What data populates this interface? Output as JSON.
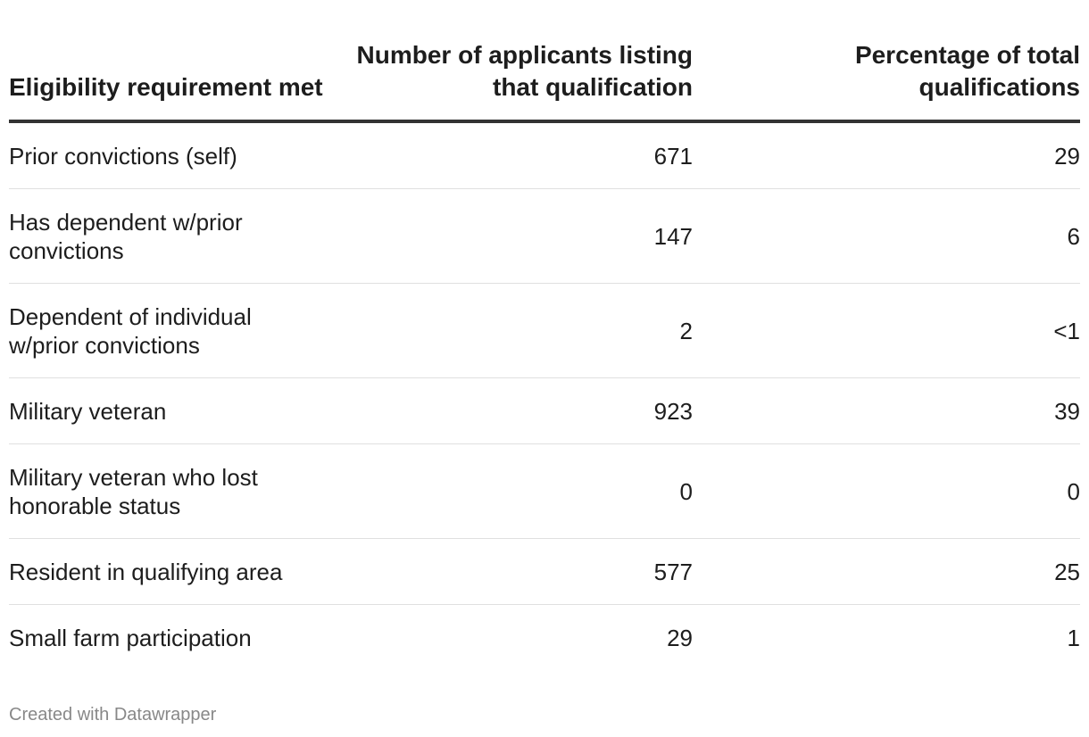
{
  "chart_data": {
    "type": "table",
    "columns": [
      "Eligibility requirement met",
      "Number of applicants listing that qualification",
      "Percentage of total qualifications"
    ],
    "rows": [
      {
        "requirement": "Prior convictions (self)",
        "applicants": "671",
        "percentage": "29"
      },
      {
        "requirement": "Has dependent w/prior convictions",
        "applicants": "147",
        "percentage": "6"
      },
      {
        "requirement": "Dependent of individual w/prior convictions",
        "applicants": "2",
        "percentage": "<1"
      },
      {
        "requirement": "Military veteran",
        "applicants": "923",
        "percentage": "39"
      },
      {
        "requirement": "Military veteran who lost honorable status",
        "applicants": "0",
        "percentage": "0"
      },
      {
        "requirement": "Resident in qualifying area",
        "applicants": "577",
        "percentage": "25"
      },
      {
        "requirement": "Small farm participation",
        "applicants": "29",
        "percentage": "1"
      }
    ]
  },
  "footer": {
    "credit": "Created with Datawrapper"
  }
}
